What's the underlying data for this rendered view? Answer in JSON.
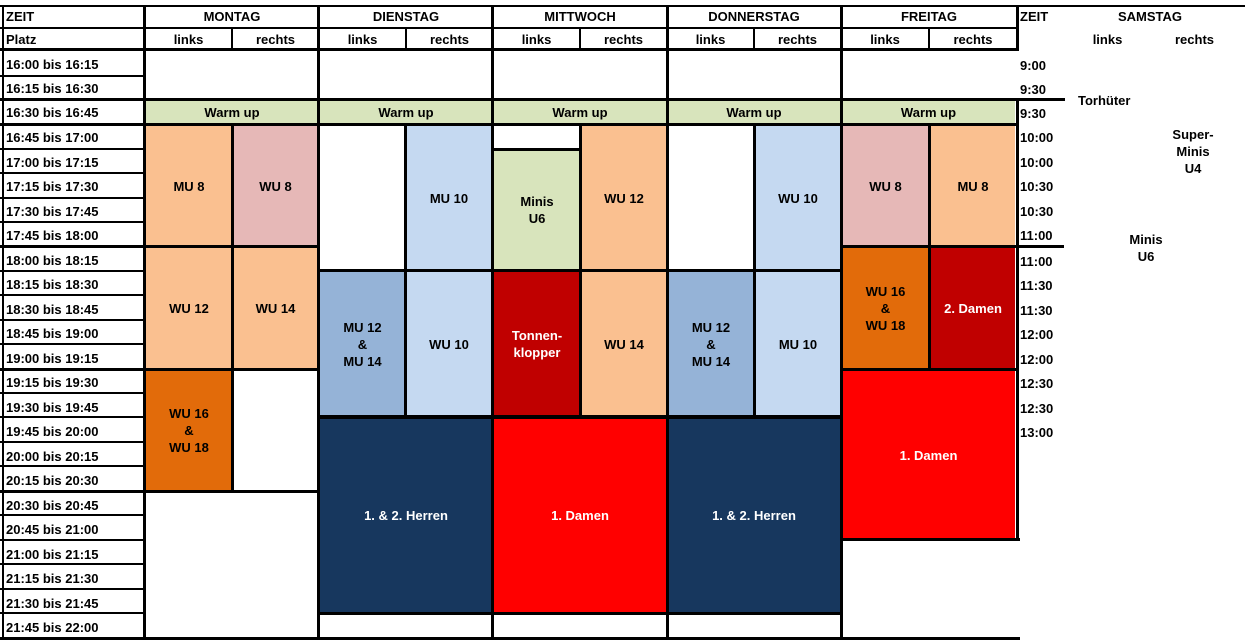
{
  "header": {
    "zeit": "ZEIT",
    "platz": "Platz",
    "days": [
      "MONTAG",
      "DIENSTAG",
      "MITTWOCH",
      "DONNERSTAG",
      "FREITAG"
    ],
    "zeit2": "ZEIT",
    "samstag": "SAMSTAG",
    "left": "links",
    "right": "rechts"
  },
  "times": [
    "16:00 bis 16:15",
    "16:15 bis 16:30",
    "16:30 bis 16:45",
    "16:45 bis 17:00",
    "17:00 bis 17:15",
    "17:15 bis 17:30",
    "17:30 bis 17:45",
    "17:45 bis 18:00",
    "18:00 bis 18:15",
    "18:15 bis 18:30",
    "18:30 bis 18:45",
    "18:45 bis 19:00",
    "19:00 bis 19:15",
    "19:15 bis 19:30",
    "19:30 bis 19:45",
    "19:45 bis 20:00",
    "20:00 bis 20:15",
    "20:15 bis 20:30",
    "20:30 bis 20:45",
    "20:45 bis 21:00",
    "21:00 bis 21:15",
    "21:15 bis 21:30",
    "21:30 bis 21:45",
    "21:45 bis 22:00"
  ],
  "saturday_times": [
    "9:00",
    "9:30",
    "9:30",
    "10:00",
    "10:00",
    "10:30",
    "10:30",
    "11:00",
    "11:00",
    "11:30",
    "11:30",
    "12:00",
    "12:00",
    "12:30",
    "12:30",
    "13:00"
  ],
  "warmup": "Warm up",
  "blocks": {
    "mo_mu8": "MU 8",
    "mo_wu8": "WU 8",
    "mo_wu12": "WU 12",
    "mo_wu14": "WU 14",
    "mo_wu1618_a": "WU 16",
    "mo_wu1618_b": "&",
    "mo_wu1618_c": "WU 18",
    "di_mu10": "MU 10",
    "di_mu1214_a": "MU 12",
    "di_mu1214_b": "&",
    "di_mu1214_c": "MU 14",
    "di_wu10": "WU 10",
    "di_herren": "1. & 2. Herren",
    "mi_minis_a": "Minis",
    "mi_minis_b": "U6",
    "mi_wu12": "WU 12",
    "mi_tonnen_a": "Tonnen-",
    "mi_tonnen_b": "klopper",
    "mi_wu14": "WU 14",
    "mi_damen": "1. Damen",
    "do_wu10": "WU 10",
    "do_mu1214_a": "MU 12",
    "do_mu1214_b": "&",
    "do_mu1214_c": "MU 14",
    "do_mu10": "MU 10",
    "do_herren": "1. & 2. Herren",
    "fr_wu8": "WU 8",
    "fr_mu8": "MU 8",
    "fr_wu1618_a": "WU 16",
    "fr_wu1618_b": "&",
    "fr_wu1618_c": "WU 18",
    "fr_damen2": "2. Damen",
    "fr_damen1": "1. Damen",
    "sa_torhueter": "Torhüter",
    "sa_superminis_a": "Super-",
    "sa_superminis_b": "Minis",
    "sa_superminis_c": "U4",
    "sa_minis_a": "Minis",
    "sa_minis_b": "U6"
  },
  "colors": {
    "warmup": "#d8e4bc",
    "peach": "#fac090",
    "pink": "#e6b8b7",
    "lightblue": "#c5d9f1",
    "midblue": "#95b3d7",
    "lightgreen": "#d8e4bc",
    "orange": "#e26b0a",
    "darkred": "#c00000",
    "red": "#ff0000",
    "navy": "#17375e"
  }
}
